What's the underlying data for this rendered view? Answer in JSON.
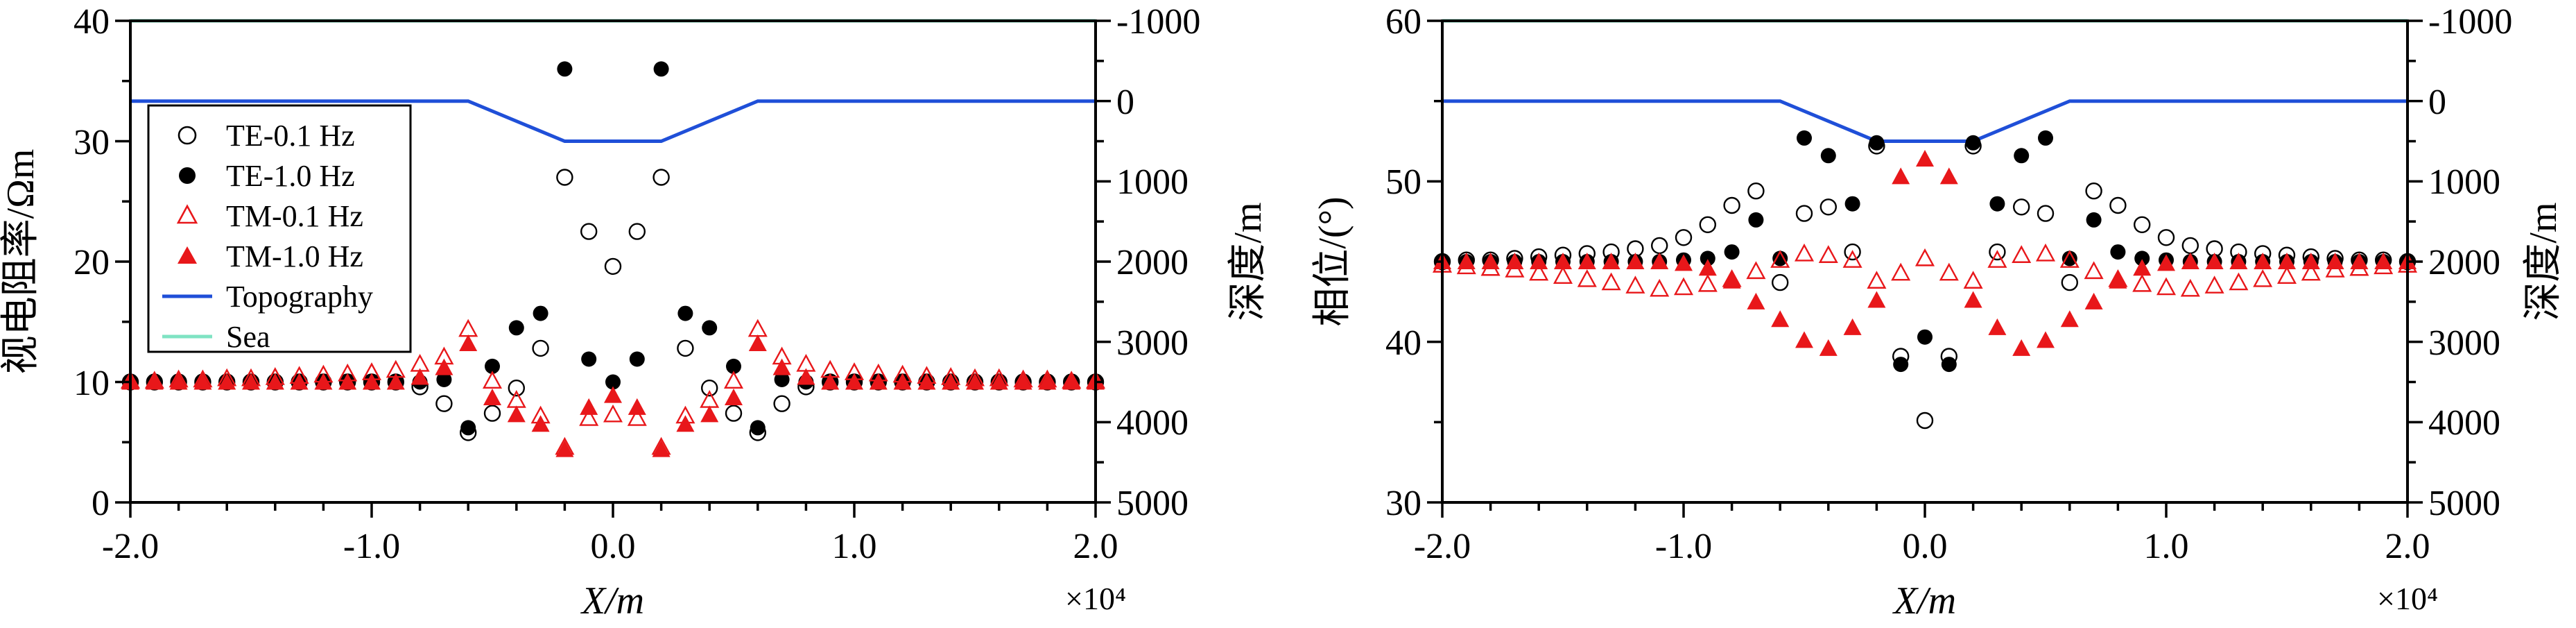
{
  "chart_data": [
    {
      "type": "scatter",
      "panel": "left",
      "xlabel": "X/m",
      "ylabel": "视电阻率/Ωm",
      "y2label": "深度/m",
      "x_multiplier": "×10⁴",
      "xlim": [
        -2.0,
        2.0
      ],
      "ylim": [
        0,
        40
      ],
      "y2lim": [
        5000,
        -1000
      ],
      "x_ticks": [
        -2.0,
        -1.0,
        0.0,
        1.0,
        2.0
      ],
      "x_tick_labels": [
        "-2.0",
        "-1.0",
        "0.0",
        "1.0",
        "2.0"
      ],
      "y_ticks": [
        0,
        10,
        20,
        30,
        40
      ],
      "y_tick_labels": [
        "0",
        "10",
        "20",
        "30",
        "40"
      ],
      "y2_ticks": [
        -1000,
        0,
        1000,
        2000,
        3000,
        4000,
        5000
      ],
      "y2_tick_labels": [
        "-1000",
        "0",
        "1000",
        "2000",
        "3000",
        "4000",
        "5000"
      ],
      "legend_position": "upper-left",
      "series": [
        {
          "name": "TE-0.1 Hz",
          "marker": "circle-open",
          "color": "#000000",
          "x": [
            -2.0,
            -1.9,
            -1.8,
            -1.7,
            -1.6,
            -1.5,
            -1.4,
            -1.3,
            -1.2,
            -1.1,
            -1.0,
            -0.9,
            -0.8,
            -0.7,
            -0.6,
            -0.5,
            -0.4,
            -0.3,
            -0.2,
            -0.1,
            0.0,
            0.1,
            0.2,
            0.3,
            0.4,
            0.5,
            0.6,
            0.7,
            0.8,
            0.9,
            1.0,
            1.1,
            1.2,
            1.3,
            1.4,
            1.5,
            1.6,
            1.7,
            1.8,
            1.9,
            2.0
          ],
          "y": [
            10,
            10,
            10,
            10,
            10,
            10,
            10,
            10,
            10,
            10,
            10,
            10,
            9.6,
            8.2,
            5.8,
            7.4,
            9.5,
            12.8,
            27,
            22.5,
            19.6,
            22.5,
            27,
            12.8,
            9.5,
            7.4,
            5.8,
            8.2,
            9.6,
            10,
            10,
            10,
            10,
            10,
            10,
            10,
            10,
            10,
            10,
            10,
            10
          ]
        },
        {
          "name": "TE-1.0 Hz",
          "marker": "circle-filled",
          "color": "#000000",
          "x": [
            -2.0,
            -1.9,
            -1.8,
            -1.7,
            -1.6,
            -1.5,
            -1.4,
            -1.3,
            -1.2,
            -1.1,
            -1.0,
            -0.9,
            -0.8,
            -0.7,
            -0.6,
            -0.5,
            -0.4,
            -0.3,
            -0.2,
            -0.1,
            0.0,
            0.1,
            0.2,
            0.3,
            0.4,
            0.5,
            0.6,
            0.7,
            0.8,
            0.9,
            1.0,
            1.1,
            1.2,
            1.3,
            1.4,
            1.5,
            1.6,
            1.7,
            1.8,
            1.9,
            2.0
          ],
          "y": [
            10,
            10,
            10,
            10,
            10,
            10,
            10,
            10,
            10,
            10,
            10,
            10,
            10,
            10.2,
            6.2,
            11.3,
            14.5,
            15.7,
            36,
            11.9,
            10.0,
            11.9,
            36,
            15.7,
            14.5,
            11.3,
            6.2,
            10.2,
            10,
            10,
            10,
            10,
            10,
            10,
            10,
            10,
            10,
            10,
            10,
            10,
            10
          ]
        },
        {
          "name": "TM-0.1 Hz",
          "marker": "triangle-open",
          "color": "#e8171a",
          "x": [
            -2.0,
            -1.9,
            -1.8,
            -1.7,
            -1.6,
            -1.5,
            -1.4,
            -1.3,
            -1.2,
            -1.1,
            -1.0,
            -0.9,
            -0.8,
            -0.7,
            -0.6,
            -0.5,
            -0.4,
            -0.3,
            -0.2,
            -0.1,
            0.0,
            0.1,
            0.2,
            0.3,
            0.4,
            0.5,
            0.6,
            0.7,
            0.8,
            0.9,
            1.0,
            1.1,
            1.2,
            1.3,
            1.4,
            1.5,
            1.6,
            1.7,
            1.8,
            1.9,
            2.0
          ],
          "y": [
            10.1,
            10.1,
            10.2,
            10.2,
            10.3,
            10.3,
            10.4,
            10.5,
            10.6,
            10.7,
            10.8,
            11.0,
            11.5,
            12.1,
            14.4,
            10.1,
            8.5,
            7.2,
            4.6,
            7.0,
            7.3,
            7.0,
            4.6,
            7.2,
            8.5,
            10.1,
            14.4,
            12.1,
            11.5,
            11.0,
            10.8,
            10.7,
            10.6,
            10.5,
            10.4,
            10.3,
            10.3,
            10.2,
            10.2,
            10.1,
            10.1
          ]
        },
        {
          "name": "TM-1.0 Hz",
          "marker": "triangle-filled",
          "color": "#e8171a",
          "x": [
            -2.0,
            -1.9,
            -1.8,
            -1.7,
            -1.6,
            -1.5,
            -1.4,
            -1.3,
            -1.2,
            -1.1,
            -1.0,
            -0.9,
            -0.8,
            -0.7,
            -0.6,
            -0.5,
            -0.4,
            -0.3,
            -0.2,
            -0.1,
            0.0,
            0.1,
            0.2,
            0.3,
            0.4,
            0.5,
            0.6,
            0.7,
            0.8,
            0.9,
            1.0,
            1.1,
            1.2,
            1.3,
            1.4,
            1.5,
            1.6,
            1.7,
            1.8,
            1.9,
            2.0
          ],
          "y": [
            10,
            10,
            10,
            10,
            10,
            10,
            10,
            10,
            10,
            10,
            10,
            10,
            10.4,
            11.2,
            13.2,
            8.7,
            7.3,
            6.5,
            4.4,
            7.9,
            8.9,
            7.9,
            4.4,
            6.5,
            7.3,
            8.7,
            13.2,
            11.2,
            10.4,
            10,
            10,
            10,
            10,
            10,
            10,
            10,
            10,
            10,
            10,
            10,
            10
          ]
        },
        {
          "name": "Topography",
          "marker": "line",
          "color": "#1f4fd8",
          "axis": "right",
          "x": [
            -2.0,
            -0.6,
            -0.2,
            0.2,
            0.6,
            2.0
          ],
          "y": [
            0,
            0,
            500,
            500,
            0,
            0
          ]
        },
        {
          "name": "Sea",
          "marker": "line",
          "color": "#7fe3c3",
          "axis": "right",
          "x": [
            -2.0,
            2.0
          ],
          "y": [
            -1000,
            -1000
          ]
        }
      ]
    },
    {
      "type": "scatter",
      "panel": "right",
      "xlabel": "X/m",
      "ylabel": "相位/(°)",
      "y2label": "深度/m",
      "x_multiplier": "×10⁴",
      "xlim": [
        -2.0,
        2.0
      ],
      "ylim": [
        30,
        60
      ],
      "y2lim": [
        5000,
        -1000
      ],
      "x_ticks": [
        -2.0,
        -1.0,
        0.0,
        1.0,
        2.0
      ],
      "x_tick_labels": [
        "-2.0",
        "-1.0",
        "0.0",
        "1.0",
        "2.0"
      ],
      "y_ticks": [
        30,
        40,
        50,
        60
      ],
      "y_tick_labels": [
        "30",
        "40",
        "50",
        "60"
      ],
      "y2_ticks": [
        -1000,
        0,
        1000,
        2000,
        3000,
        4000,
        5000
      ],
      "y2_tick_labels": [
        "-1000",
        "0",
        "1000",
        "2000",
        "3000",
        "4000",
        "5000"
      ],
      "series": [
        {
          "name": "TE-0.1 Hz",
          "marker": "circle-open",
          "color": "#000000",
          "x": [
            -2.0,
            -1.9,
            -1.8,
            -1.7,
            -1.6,
            -1.5,
            -1.4,
            -1.3,
            -1.2,
            -1.1,
            -1.0,
            -0.9,
            -0.8,
            -0.7,
            -0.6,
            -0.5,
            -0.4,
            -0.3,
            -0.2,
            -0.1,
            0.0,
            0.1,
            0.2,
            0.3,
            0.4,
            0.5,
            0.6,
            0.7,
            0.8,
            0.9,
            1.0,
            1.1,
            1.2,
            1.3,
            1.4,
            1.5,
            1.6,
            1.7,
            1.8,
            1.9,
            2.0
          ],
          "y": [
            45,
            45.1,
            45.1,
            45.2,
            45.3,
            45.4,
            45.5,
            45.6,
            45.8,
            46.0,
            46.5,
            47.3,
            48.5,
            49.4,
            43.7,
            48.0,
            48.4,
            45.6,
            52.2,
            39.1,
            35.1,
            39.1,
            52.2,
            45.6,
            48.4,
            48.0,
            43.7,
            49.4,
            48.5,
            47.3,
            46.5,
            46.0,
            45.8,
            45.6,
            45.5,
            45.4,
            45.3,
            45.2,
            45.1,
            45.1,
            45
          ]
        },
        {
          "name": "TE-1.0 Hz",
          "marker": "circle-filled",
          "color": "#000000",
          "x": [
            -2.0,
            -1.9,
            -1.8,
            -1.7,
            -1.6,
            -1.5,
            -1.4,
            -1.3,
            -1.2,
            -1.1,
            -1.0,
            -0.9,
            -0.8,
            -0.7,
            -0.6,
            -0.5,
            -0.4,
            -0.3,
            -0.2,
            -0.1,
            0.0,
            0.1,
            0.2,
            0.3,
            0.4,
            0.5,
            0.6,
            0.7,
            0.8,
            0.9,
            1.0,
            1.1,
            1.2,
            1.3,
            1.4,
            1.5,
            1.6,
            1.7,
            1.8,
            1.9,
            2.0
          ],
          "y": [
            45,
            45,
            45,
            45,
            45,
            45,
            45,
            45,
            45,
            45,
            45.1,
            45.2,
            45.6,
            47.6,
            45.2,
            52.7,
            51.6,
            48.6,
            52.4,
            38.6,
            40.3,
            38.6,
            52.4,
            48.6,
            51.6,
            52.7,
            45.2,
            47.6,
            45.6,
            45.2,
            45.1,
            45,
            45,
            45,
            45,
            45,
            45,
            45,
            45,
            45,
            45
          ]
        },
        {
          "name": "TM-0.1 Hz",
          "marker": "triangle-open",
          "color": "#e8171a",
          "x": [
            -2.0,
            -1.9,
            -1.8,
            -1.7,
            -1.6,
            -1.5,
            -1.4,
            -1.3,
            -1.2,
            -1.1,
            -1.0,
            -0.9,
            -0.8,
            -0.7,
            -0.6,
            -0.5,
            -0.4,
            -0.3,
            -0.2,
            -0.1,
            0.0,
            0.1,
            0.2,
            0.3,
            0.4,
            0.5,
            0.6,
            0.7,
            0.8,
            0.9,
            1.0,
            1.1,
            1.2,
            1.3,
            1.4,
            1.5,
            1.6,
            1.7,
            1.8,
            1.9,
            2.0
          ],
          "y": [
            44.8,
            44.7,
            44.6,
            44.5,
            44.3,
            44.1,
            43.9,
            43.7,
            43.5,
            43.3,
            43.4,
            43.6,
            43.9,
            44.4,
            45.1,
            45.5,
            45.4,
            45.1,
            43.8,
            44.3,
            45.2,
            44.3,
            43.8,
            45.1,
            45.4,
            45.5,
            45.1,
            44.4,
            43.9,
            43.6,
            43.4,
            43.3,
            43.5,
            43.7,
            43.9,
            44.1,
            44.3,
            44.5,
            44.6,
            44.7,
            44.8
          ]
        },
        {
          "name": "TM-1.0 Hz",
          "marker": "triangle-filled",
          "color": "#e8171a",
          "x": [
            -2.0,
            -1.9,
            -1.8,
            -1.7,
            -1.6,
            -1.5,
            -1.4,
            -1.3,
            -1.2,
            -1.1,
            -1.0,
            -0.9,
            -0.8,
            -0.7,
            -0.6,
            -0.5,
            -0.4,
            -0.3,
            -0.2,
            -0.1,
            0.0,
            0.1,
            0.2,
            0.3,
            0.4,
            0.5,
            0.6,
            0.7,
            0.8,
            0.9,
            1.0,
            1.1,
            1.2,
            1.3,
            1.4,
            1.5,
            1.6,
            1.7,
            1.8,
            1.9,
            2.0
          ],
          "y": [
            45,
            45,
            45,
            45,
            45,
            45,
            45,
            45,
            45,
            45,
            44.9,
            44.6,
            43.8,
            42.5,
            41.4,
            40.1,
            39.6,
            40.9,
            42.6,
            50.3,
            51.4,
            50.3,
            42.6,
            40.9,
            39.6,
            40.1,
            41.4,
            42.5,
            43.8,
            44.6,
            44.9,
            45,
            45,
            45,
            45,
            45,
            45,
            45,
            45,
            45,
            45
          ]
        },
        {
          "name": "Topography",
          "marker": "line",
          "color": "#1f4fd8",
          "axis": "right",
          "x": [
            -2.0,
            -0.6,
            -0.2,
            0.2,
            0.6,
            2.0
          ],
          "y": [
            0,
            0,
            500,
            500,
            0,
            0
          ]
        },
        {
          "name": "Sea",
          "marker": "line",
          "color": "#7fe3c3",
          "axis": "right",
          "x": [
            -2.0,
            2.0
          ],
          "y": [
            -1000,
            -1000
          ]
        }
      ]
    }
  ]
}
